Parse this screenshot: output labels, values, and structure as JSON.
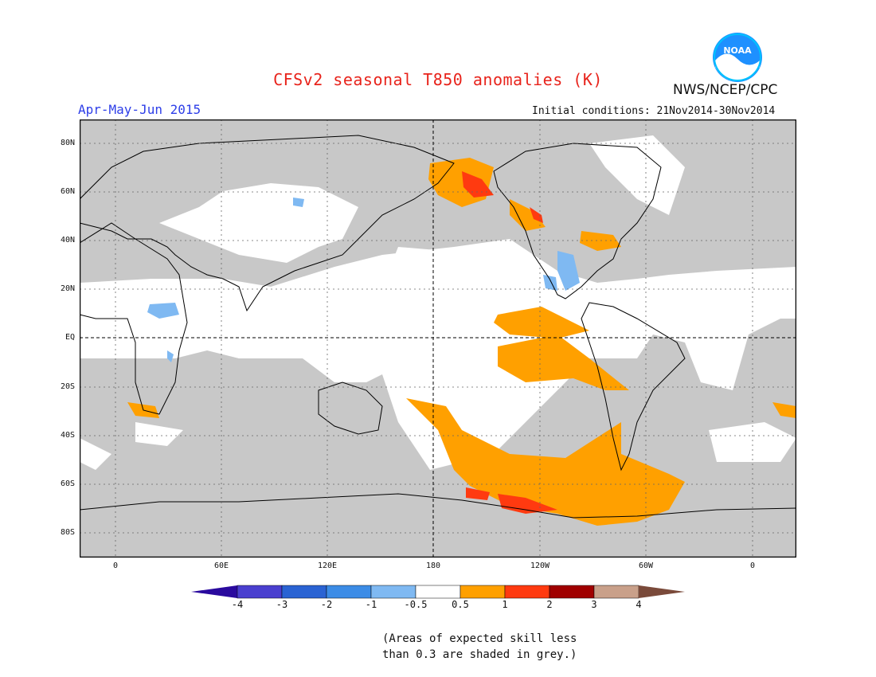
{
  "header": {
    "title": "CFSv2 seasonal T850 anomalies (K)",
    "season": "Apr-May-Jun 2015",
    "initial_conditions": "Initial conditions: 21Nov2014-30Nov2014",
    "agency": "NWS/NCEP/CPC",
    "logo_text": "NOAA"
  },
  "map": {
    "lat_labels": [
      "80N",
      "60N",
      "40N",
      "20N",
      "EQ",
      "20S",
      "40S",
      "60S",
      "80S"
    ],
    "lon_labels": [
      "0",
      "60E",
      "120E",
      "180",
      "120W",
      "60W",
      "0"
    ]
  },
  "colorbar": {
    "labels": [
      "-4",
      "-3",
      "-2",
      "-1",
      "-0.5",
      "0.5",
      "1",
      "2",
      "3",
      "4"
    ],
    "colors": [
      "#2a0a9e",
      "#4a3fcf",
      "#2a63d3",
      "#3c8ce6",
      "#7fb9f2",
      "#ffffff",
      "#ffa000",
      "#ff3a10",
      "#a00000",
      "#c9a08a",
      "#7a4a3a"
    ]
  },
  "note": {
    "line1": "(Areas of expected skill less",
    "line2": "than 0.3 are shaded in grey.)"
  },
  "legend_colors": {
    "grey": "#c8c8c8",
    "title": "#e8231b",
    "season": "#2d3ee8"
  }
}
